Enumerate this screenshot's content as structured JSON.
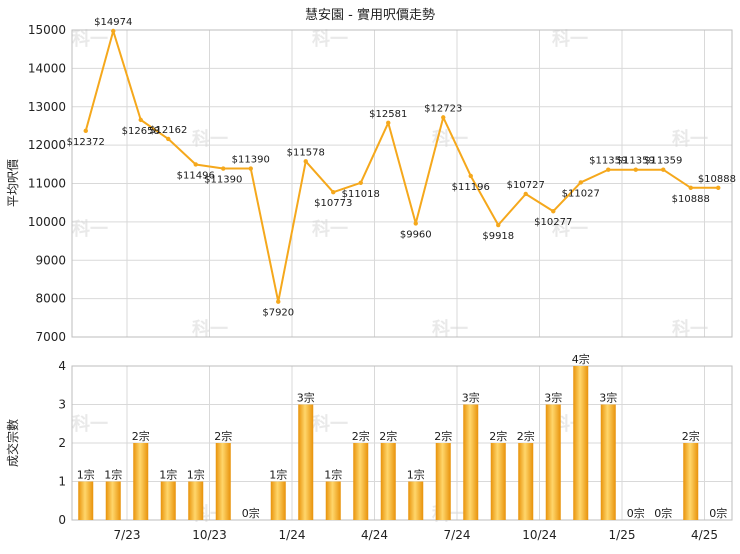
{
  "title": "慧安園 - 實用呎價走勢",
  "chart_data": [
    {
      "type": "line",
      "name": "price-chart",
      "ylabel": "平均呎價",
      "ylim": [
        7000,
        15000
      ],
      "yticks": [
        7000,
        8000,
        9000,
        10000,
        11000,
        12000,
        13000,
        14000,
        15000
      ],
      "grid": true,
      "color": "#f5a81c",
      "series": [
        {
          "values": [
            12372,
            14974,
            12658,
            12162,
            11496,
            11390,
            11390,
            7920,
            11578,
            10773,
            11018,
            12581,
            9960,
            12723,
            11196,
            9918,
            10727,
            10277,
            11027,
            11359,
            11359,
            11359,
            10888,
            10888
          ],
          "labels": [
            "$12372",
            "$14974",
            "$12658",
            "$12162",
            "$11496",
            "$11390",
            "$11390",
            "$7920",
            "$11578",
            "$10773",
            "$11018",
            "$12581",
            "$9960",
            "$12723",
            "$11196",
            "$9918",
            "$10727",
            "$10277",
            "$11027",
            "$11359",
            "$11359",
            "$11359",
            "$10888",
            "$10888"
          ]
        }
      ]
    },
    {
      "type": "bar",
      "name": "transactions-chart",
      "ylabel": "成交宗數",
      "ylim": [
        0,
        4
      ],
      "yticks": [
        0,
        1,
        2,
        3,
        4
      ],
      "grid": true,
      "color": "#f5a81c",
      "series": [
        {
          "values": [
            1,
            1,
            2,
            1,
            1,
            2,
            0,
            1,
            3,
            1,
            2,
            2,
            1,
            2,
            3,
            2,
            2,
            3,
            4,
            3,
            0,
            0,
            2,
            0
          ],
          "labels": [
            "1宗",
            "1宗",
            "2宗",
            "1宗",
            "1宗",
            "2宗",
            "0宗",
            "1宗",
            "3宗",
            "1宗",
            "2宗",
            "2宗",
            "1宗",
            "2宗",
            "3宗",
            "2宗",
            "2宗",
            "3宗",
            "4宗",
            "3宗",
            "0宗",
            "0宗",
            "2宗",
            "0宗"
          ]
        }
      ]
    }
  ],
  "x_axis": {
    "ticks": [
      {
        "index": 1.5,
        "label": "7/23"
      },
      {
        "index": 4.5,
        "label": "10/23"
      },
      {
        "index": 7.5,
        "label": "1/24"
      },
      {
        "index": 10.5,
        "label": "4/24"
      },
      {
        "index": 13.5,
        "label": "7/24"
      },
      {
        "index": 16.5,
        "label": "10/24"
      },
      {
        "index": 19.5,
        "label": "1/25"
      },
      {
        "index": 22.5,
        "label": "4/25"
      }
    ]
  },
  "watermark": "科一"
}
